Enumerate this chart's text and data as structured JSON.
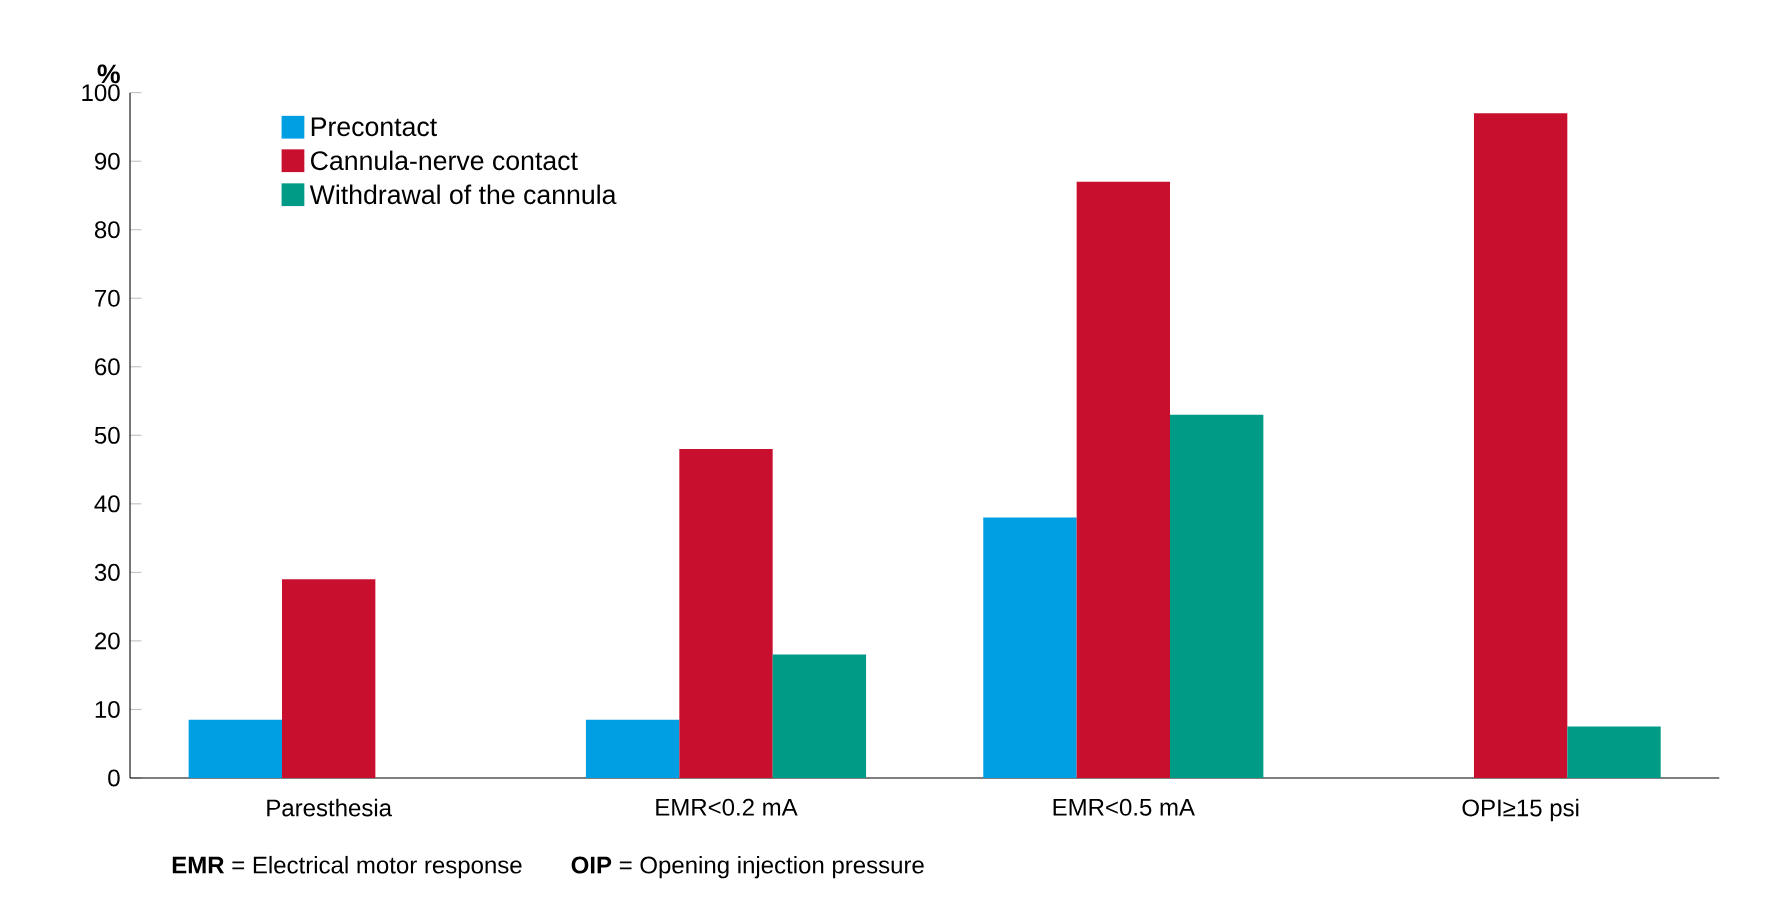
{
  "chart_data": {
    "type": "bar",
    "ylabel": "%",
    "categories": [
      "Paresthesia",
      "EMR<0.2 mA",
      "EMR<0.5 mA",
      "OPI≥15 psi"
    ],
    "series": [
      {
        "name": "Precontact",
        "color": "#009fe3",
        "values": [
          8.5,
          8.5,
          38,
          null
        ]
      },
      {
        "name": "Cannula-nerve contact",
        "color": "#c8102e",
        "values": [
          29,
          48,
          87,
          97
        ]
      },
      {
        "name": "Withdrawal of the cannula",
        "color": "#009b86",
        "values": [
          null,
          18,
          53,
          7.5
        ]
      }
    ],
    "ylim": [
      0,
      100
    ],
    "yticks": [
      0,
      10,
      20,
      30,
      40,
      50,
      60,
      70,
      80,
      90,
      100
    ],
    "legend": "top left",
    "grid": false,
    "annotations": [
      "**EMR** = Electrical motor response",
      "**OIP** = Opening injection pressure"
    ]
  }
}
